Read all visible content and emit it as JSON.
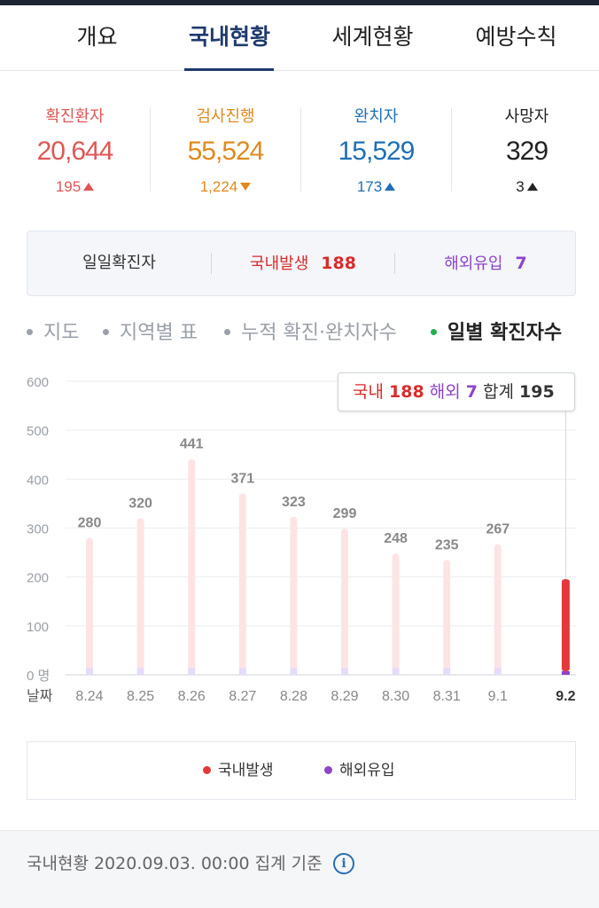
{
  "tabs": [
    "개요",
    "국내현황",
    "세계현황",
    "예방수칙"
  ],
  "active_tab": "국내현황",
  "stats": [
    {
      "label": "확진환자",
      "value": "20,644",
      "delta": "195",
      "direction": "up",
      "color": "#e05656"
    },
    {
      "label": "검사진행",
      "value": "55,524",
      "delta": "1,224",
      "direction": "down",
      "color": "#e08a1e"
    },
    {
      "label": "완치자",
      "value": "15,529",
      "delta": "173",
      "direction": "up",
      "color": "#1e6fb5"
    },
    {
      "label": "사망자",
      "value": "329",
      "delta": "3",
      "direction": "up",
      "color": "#222222"
    }
  ],
  "daily": {
    "label": "일일확진자",
    "domestic_label": "국내발생",
    "domestic_value": "188",
    "overseas_label": "해외유입",
    "overseas_value": "7"
  },
  "filters": [
    {
      "label": "지도",
      "active": false
    },
    {
      "label": "지역별 표",
      "active": false
    },
    {
      "label": "누적 확진·완치자수",
      "active": false
    },
    {
      "label": "일별 확진자수",
      "active": true
    }
  ],
  "tooltip": {
    "domestic_label": "국내",
    "domestic_value": "188",
    "overseas_label": "해외",
    "overseas_value": "7",
    "total_label": "합계",
    "total_value": "195"
  },
  "chart_data": {
    "type": "bar",
    "categories": [
      "8.24",
      "8.25",
      "8.26",
      "8.27",
      "8.28",
      "8.29",
      "8.30",
      "8.31",
      "9.1",
      "9.2"
    ],
    "totals": [
      280,
      320,
      441,
      371,
      323,
      299,
      248,
      235,
      267,
      null
    ],
    "series": [
      {
        "name": "국내발생",
        "values": [
          null,
          null,
          null,
          null,
          null,
          null,
          null,
          null,
          null,
          188
        ]
      },
      {
        "name": "해외유입",
        "values": [
          null,
          null,
          null,
          null,
          null,
          null,
          null,
          null,
          null,
          7
        ]
      }
    ],
    "highlighted_category": "9.2",
    "yticks": [
      "0 명",
      "100",
      "200",
      "300",
      "400",
      "500",
      "600"
    ],
    "ylim": [
      0,
      600
    ],
    "xlabel": "날짜",
    "ylabel": "",
    "grid": true,
    "colors": {
      "domestic": "#e3393c",
      "overseas": "#8e44c9",
      "inactive_domestic": "#fde4e4",
      "inactive_overseas": "#e6dbf8"
    }
  },
  "legend": [
    {
      "label": "국내발생",
      "color": "#e3393c"
    },
    {
      "label": "해외유입",
      "color": "#8e44c9"
    }
  ],
  "footer": {
    "text": "국내현황 2020.09.03. 00:00 집계 기준",
    "icon": "info-icon"
  }
}
